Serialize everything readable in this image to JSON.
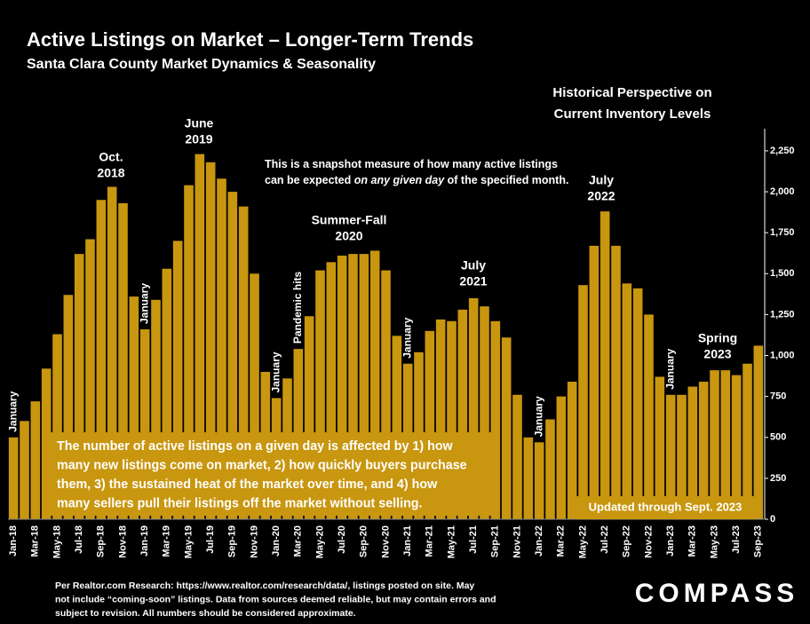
{
  "chart_data": {
    "type": "bar",
    "title": "Active Listings on Market – Longer-Term Trends",
    "subtitle": "Santa Clara County Market Dynamics & Seasonality",
    "color": "#c8960f",
    "categories": [
      "Jan-18",
      null,
      "Mar-18",
      null,
      "May-18",
      null,
      "Jul-18",
      null,
      "Sep-18",
      null,
      "Nov-18",
      null,
      "Jan-19",
      null,
      "Mar-19",
      null,
      "May-19",
      null,
      "Jul-19",
      null,
      "Sep-19",
      null,
      "Nov-19",
      null,
      "Jan-20",
      null,
      "Mar-20",
      null,
      "May-20",
      null,
      "Jul-20",
      null,
      "Sep-20",
      null,
      "Nov-20",
      null,
      "Jan-21",
      null,
      "Mar-21",
      null,
      "May-21",
      null,
      "Jul-21",
      null,
      "Sep-21",
      null,
      "Nov-21",
      null,
      "Jan-22",
      null,
      "Mar-22",
      null,
      "May-22",
      null,
      "Jul-22",
      null,
      "Sep-22",
      null,
      "Nov-22",
      null,
      "Jan-23",
      null,
      "Mar-23",
      null,
      "May-23",
      null,
      "Jul-23",
      null,
      "Sep-23"
    ],
    "values": [
      500,
      600,
      720,
      920,
      1130,
      1370,
      1620,
      1710,
      1950,
      2030,
      1930,
      1360,
      1160,
      1340,
      1530,
      1700,
      2040,
      2230,
      2180,
      2080,
      2000,
      1910,
      1500,
      900,
      740,
      860,
      1040,
      1240,
      1520,
      1570,
      1610,
      1620,
      1620,
      1640,
      1520,
      1120,
      950,
      1020,
      1150,
      1220,
      1210,
      1280,
      1350,
      1300,
      1210,
      1110,
      760,
      500,
      470,
      610,
      750,
      840,
      1430,
      1670,
      1880,
      1670,
      1440,
      1410,
      1250,
      870,
      760,
      760,
      810,
      840,
      910,
      910,
      880,
      950,
      1060
    ],
    "ylim": [
      0,
      2385
    ],
    "yticks": [
      0,
      250,
      500,
      750,
      {
        "value": 1000,
        "label": "1,000"
      },
      {
        "value": 1250,
        "label": "1,250"
      },
      {
        "value": 1500,
        "label": "1,500"
      },
      {
        "value": 1750,
        "label": "1,750"
      },
      {
        "value": 2000,
        "label": "2,000"
      },
      {
        "value": 2250,
        "label": "2,250"
      }
    ],
    "grid": false,
    "period_labels": [
      [
        "Oct.",
        "2018"
      ],
      [
        "June",
        "2019"
      ],
      [
        "Summer-Fall",
        "2020"
      ],
      [
        "July",
        "2021"
      ],
      [
        "July",
        "2022"
      ],
      [
        "Spring",
        "2023"
      ]
    ],
    "january_labels": [
      "January",
      "January",
      "January",
      "January",
      "January",
      "January"
    ],
    "pandemic_label": "Pandemic hits",
    "perspective": [
      "Historical Perspective on",
      "Current Inventory Levels"
    ],
    "note": [
      [
        "This is a snapshot measure of how many active listings"
      ],
      [
        "can be expected ",
        "on any given day",
        " of the specified month."
      ]
    ],
    "info_box": [
      "The number of active listings on a given day is affected by 1) how",
      "many new listings come on market, 2) how quickly buyers purchase",
      "them, 3) the sustained heat of the market over time, and 4) how",
      "many sellers pull their listings off the market without selling."
    ],
    "updated": "Updated through Sept. 2023",
    "footer": [
      "Per Realtor.com Research:  https://www.realtor.com/research/data/, listings posted on site. May",
      "not include “coming-soon” listings. Data from sources deemed reliable, but may contain errors and",
      "subject to revision. All numbers should be considered approximate."
    ],
    "logo": "COMPASS"
  }
}
